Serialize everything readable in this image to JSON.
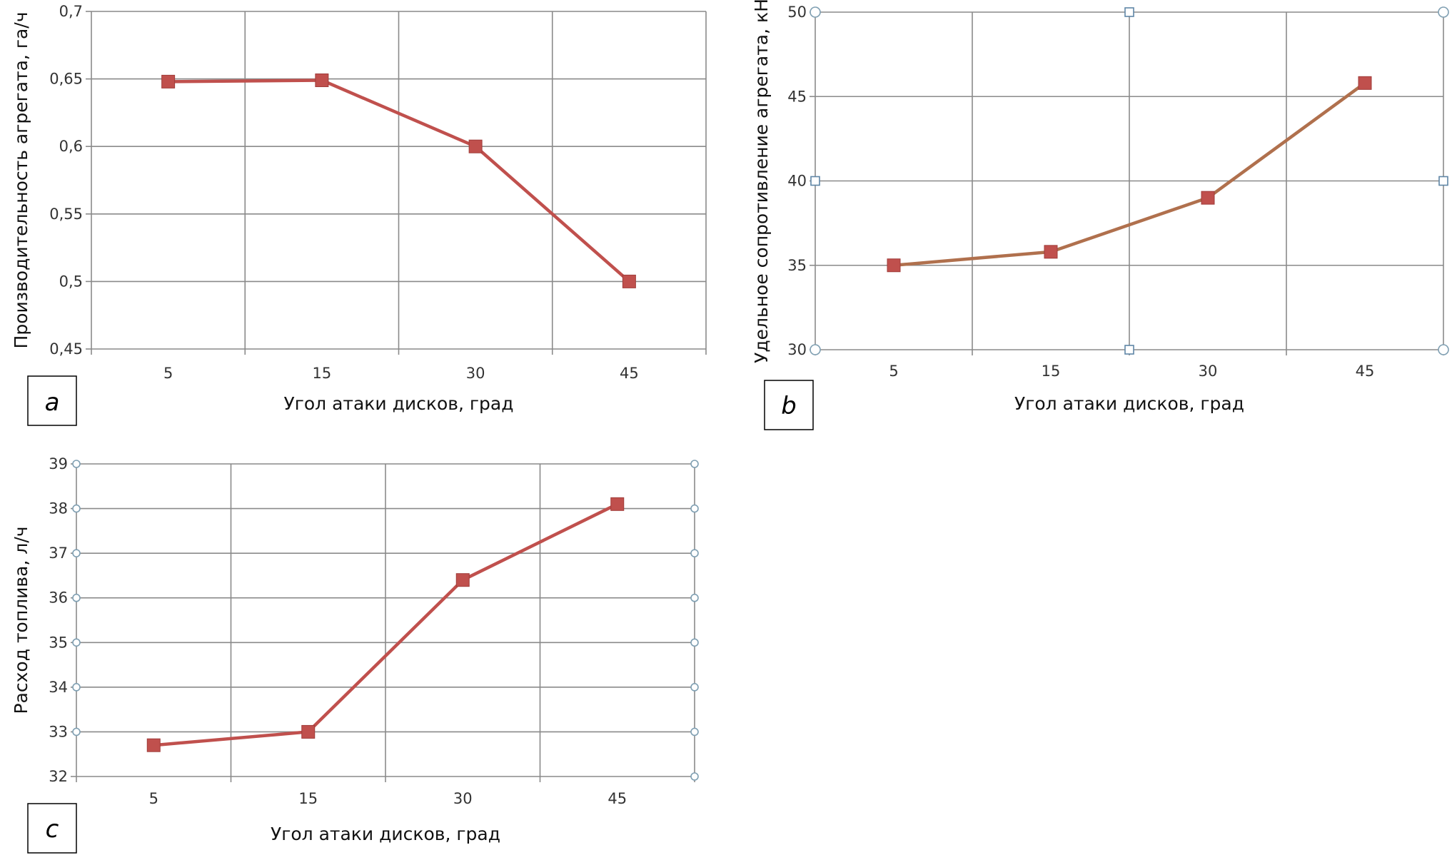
{
  "panels": {
    "a": {
      "letter": "a"
    },
    "b": {
      "letter": "b"
    },
    "c": {
      "letter": "c"
    }
  },
  "chart_data": [
    {
      "id": "a",
      "type": "line",
      "categories": [
        "5",
        "15",
        "30",
        "45"
      ],
      "series": [
        {
          "values": [
            0.648,
            0.649,
            0.6,
            0.5
          ]
        }
      ],
      "ylabel": "Производительность агрегата, га/ч",
      "xlabel": "Угол атаки дисков, град",
      "ylim": [
        0.45,
        0.7
      ],
      "yticks": [
        "0,45",
        "0,5",
        "0,55",
        "0,6",
        "0,65",
        "0,7"
      ],
      "grid": true,
      "line_color": "#c0504d",
      "marker_color": "#c0504d"
    },
    {
      "id": "b",
      "type": "line",
      "categories": [
        "5",
        "15",
        "30",
        "45"
      ],
      "series": [
        {
          "values": [
            35.0,
            35.8,
            39.0,
            45.8
          ]
        }
      ],
      "ylabel": "Удельное сопротивление агрегата, кН",
      "xlabel": "Угол атаки дисков, град",
      "ylim": [
        30,
        50
      ],
      "yticks": [
        "30",
        "35",
        "40",
        "45",
        "50"
      ],
      "grid": true,
      "line_color": "#b0704d",
      "marker_color": "#c0504d"
    },
    {
      "id": "c",
      "type": "line",
      "categories": [
        "5",
        "15",
        "30",
        "45"
      ],
      "series": [
        {
          "values": [
            32.7,
            33.0,
            36.4,
            38.1
          ]
        }
      ],
      "ylabel": "Расход топлива, л/ч",
      "xlabel": "Угол атаки дисков, град",
      "ylim": [
        32,
        39
      ],
      "yticks": [
        "32",
        "33",
        "34",
        "35",
        "36",
        "37",
        "38",
        "39"
      ],
      "grid": true,
      "line_color": "#c0504d",
      "marker_color": "#c0504d"
    }
  ]
}
